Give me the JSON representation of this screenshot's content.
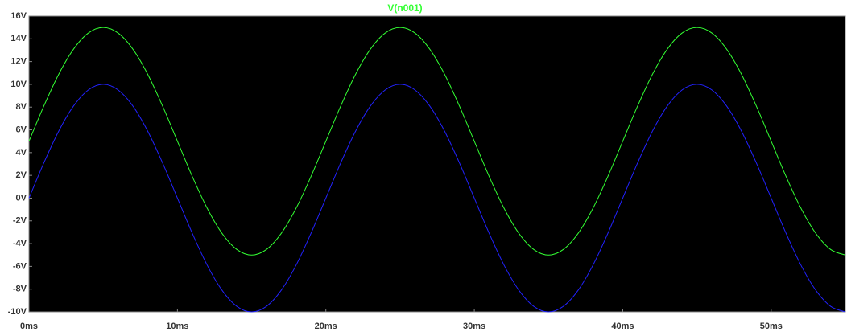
{
  "chart_data": {
    "type": "line",
    "x": [
      0,
      1,
      2,
      3,
      4,
      5,
      6,
      7,
      8,
      9,
      10,
      11,
      12,
      13,
      14,
      15,
      16,
      17,
      18,
      19,
      20,
      21,
      22,
      23,
      24,
      25,
      26,
      27,
      28,
      29,
      30,
      31,
      32,
      33,
      34,
      35,
      36,
      37,
      38,
      39,
      40,
      41,
      42,
      43,
      44,
      45,
      46,
      47,
      48,
      49,
      50,
      51,
      52,
      53,
      54,
      55
    ],
    "series": [
      {
        "name": "V(n001)",
        "color": "#33ff33",
        "values": [
          5,
          8.09,
          10.88,
          13.09,
          14.51,
          15,
          14.51,
          13.09,
          10.88,
          8.09,
          5,
          1.91,
          -0.88,
          -3.09,
          -4.51,
          -5,
          -4.51,
          -3.09,
          -0.88,
          1.91,
          5,
          8.09,
          10.88,
          13.09,
          14.51,
          15,
          14.51,
          13.09,
          10.88,
          8.09,
          5,
          1.91,
          -0.88,
          -3.09,
          -4.51,
          -5,
          -4.51,
          -3.09,
          -0.88,
          1.91,
          5,
          8.09,
          10.88,
          13.09,
          14.51,
          15,
          14.51,
          13.09,
          10.88,
          8.09,
          5,
          1.91,
          -0.88,
          -3.09,
          -4.51,
          -5
        ]
      },
      {
        "color": "#2222ff",
        "values": [
          0,
          3.09,
          5.88,
          8.09,
          9.51,
          10,
          9.51,
          8.09,
          5.88,
          3.09,
          0,
          -3.09,
          -5.88,
          -8.09,
          -9.51,
          -10,
          -9.51,
          -8.09,
          -5.88,
          -3.09,
          0,
          3.09,
          5.88,
          8.09,
          9.51,
          10,
          9.51,
          8.09,
          5.88,
          3.09,
          0,
          -3.09,
          -5.88,
          -8.09,
          -9.51,
          -10,
          -9.51,
          -8.09,
          -5.88,
          -3.09,
          0,
          3.09,
          5.88,
          8.09,
          9.51,
          10,
          9.51,
          8.09,
          5.88,
          3.09,
          0,
          -3.09,
          -5.88,
          -8.09,
          -9.51,
          -10
        ]
      }
    ],
    "xlim": [
      0,
      55
    ],
    "xticks": [
      {
        "value": 0,
        "label": "0ms"
      },
      {
        "value": 10,
        "label": "10ms"
      },
      {
        "value": 20,
        "label": "20ms"
      },
      {
        "value": 30,
        "label": "30ms"
      },
      {
        "value": 40,
        "label": "40ms"
      },
      {
        "value": 50,
        "label": "50ms"
      }
    ],
    "ylim": [
      -10,
      16
    ],
    "yticks": [
      {
        "value": -10,
        "label": "-10V"
      },
      {
        "value": -8,
        "label": "-8V"
      },
      {
        "value": -6,
        "label": "-6V"
      },
      {
        "value": -4,
        "label": "-4V"
      },
      {
        "value": -2,
        "label": "-2V"
      },
      {
        "value": 0,
        "label": "0V"
      },
      {
        "value": 2,
        "label": "2V"
      },
      {
        "value": 4,
        "label": "4V"
      },
      {
        "value": 6,
        "label": "6V"
      },
      {
        "value": 8,
        "label": "8V"
      },
      {
        "value": 10,
        "label": "10V"
      },
      {
        "value": 12,
        "label": "12V"
      },
      {
        "value": 14,
        "label": "14V"
      },
      {
        "value": 16,
        "label": "16V"
      }
    ],
    "grid": false
  }
}
